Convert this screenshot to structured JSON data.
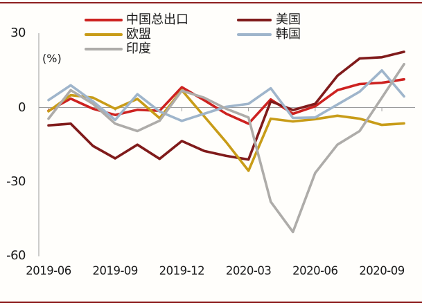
{
  "frame": {
    "border_color": "#8e1f1f",
    "background": "#fffefb",
    "axis_color": "#9a9a9a"
  },
  "unit_label": "(%)",
  "chart_data": {
    "type": "line",
    "title": "",
    "ylabel": "(%)",
    "ylim": [
      -60,
      30
    ],
    "yticks": [
      30,
      0,
      -30,
      -60
    ],
    "x_tick_labels": [
      "2019-06",
      "2019-09",
      "2019-12",
      "2020-03",
      "2020-06",
      "2020-09"
    ],
    "x": [
      "2019-06",
      "2019-07",
      "2019-08",
      "2019-09",
      "2019-10",
      "2019-11",
      "2019-12",
      "2020-01",
      "2020-02",
      "2020-03",
      "2020-04",
      "2020-05",
      "2020-06",
      "2020-07",
      "2020-08",
      "2020-09",
      "2020-10"
    ],
    "legend_position": "top",
    "grid": "zero-baseline-only",
    "series": [
      {
        "key": "china-total",
        "name": "中国总出口",
        "color": "#cd2220",
        "values": [
          -1.3,
          3.6,
          -0.5,
          -3.0,
          -0.9,
          -1.3,
          8.2,
          3.0,
          -2.5,
          -6.5,
          3.3,
          -2.5,
          0.5,
          7.0,
          9.5,
          10.0,
          11.4
        ]
      },
      {
        "key": "us",
        "name": "美国",
        "color": "#801b1b",
        "values": [
          -7.2,
          -6.5,
          -15.5,
          -20.5,
          -15.0,
          -20.7,
          -13.5,
          -17.5,
          -19.5,
          -21.0,
          2.5,
          -1.0,
          1.5,
          12.8,
          19.8,
          20.3,
          22.5
        ]
      },
      {
        "key": "eu",
        "name": "欧盟",
        "color": "#c89c18",
        "values": [
          -1.5,
          5.0,
          4.0,
          -0.5,
          3.5,
          -4.3,
          7.0,
          -3.5,
          -14.0,
          -25.5,
          -4.5,
          -5.6,
          -4.7,
          -3.3,
          -4.5,
          -7.0,
          -6.4
        ]
      },
      {
        "key": "korea",
        "name": "韩国",
        "color": "#9fb5cb",
        "values": [
          3.0,
          9.0,
          2.5,
          -5.0,
          5.4,
          -1.6,
          -5.4,
          -2.5,
          0.3,
          1.5,
          7.8,
          -4.2,
          -4.0,
          1.2,
          6.4,
          15.0,
          4.5
        ]
      },
      {
        "key": "india",
        "name": "印度",
        "color": "#aeaca9",
        "values": [
          -4.5,
          7.0,
          1.5,
          -6.5,
          -9.5,
          -5.3,
          6.8,
          4.0,
          -0.5,
          -4.0,
          -38.0,
          -50.2,
          -26.4,
          -15.0,
          -9.5,
          4.0,
          17.5
        ]
      }
    ]
  }
}
